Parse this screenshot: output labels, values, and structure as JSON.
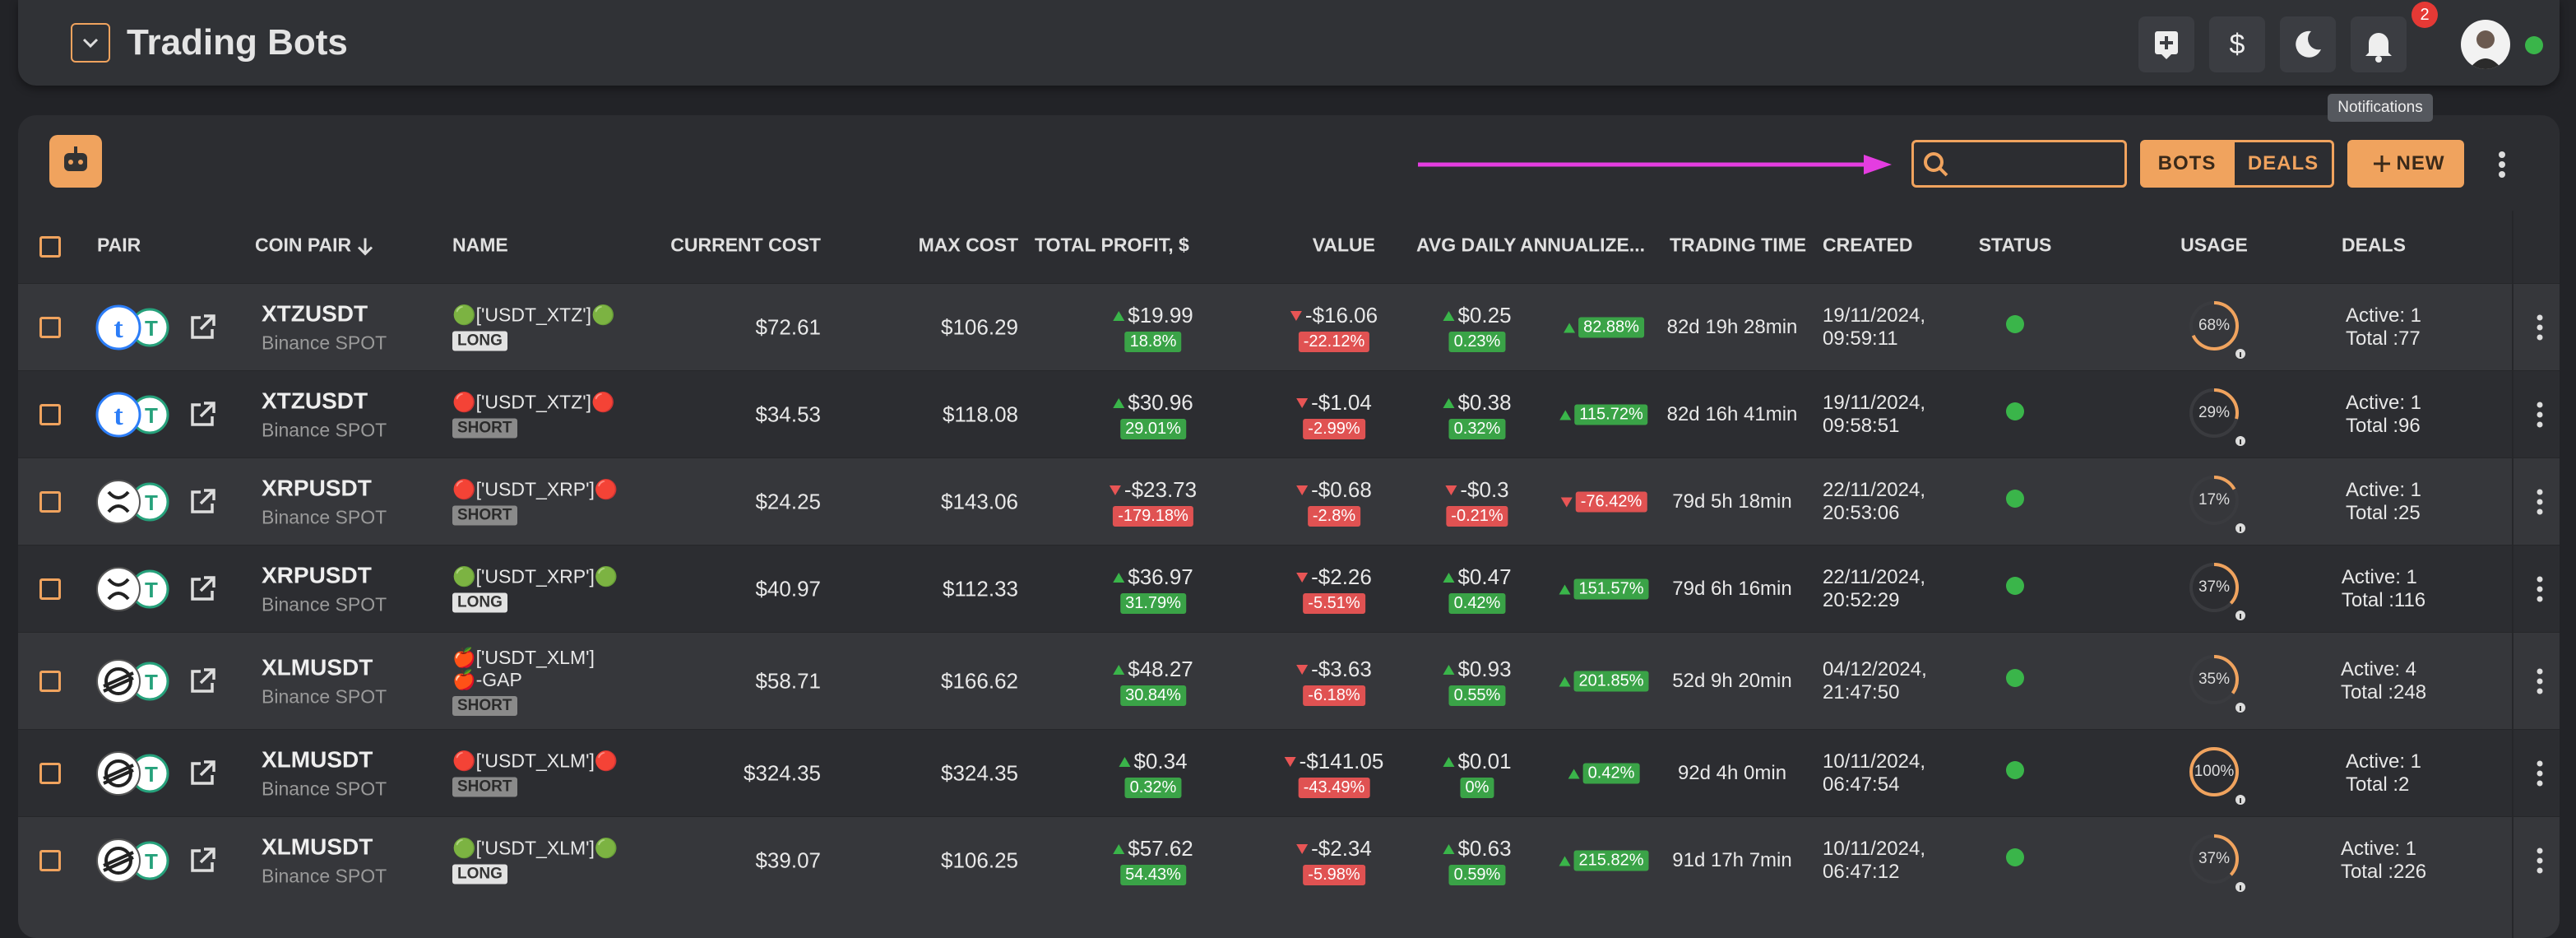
{
  "header": {
    "title": "Trading Bots",
    "notification_count": "2",
    "tooltip": "Notifications"
  },
  "toolbar": {
    "bots": "BOTS",
    "deals": "DEALS",
    "new": "NEW"
  },
  "table": {
    "columns": [
      "PAIR",
      "COIN PAIR",
      "NAME",
      "CURRENT COST",
      "MAX COST",
      "TOTAL PROFIT, $",
      "VALUE",
      "AVG DAILY",
      "ANNUALIZE...",
      "TRADING TIME",
      "CREATED",
      "STATUS",
      "USAGE",
      "DEALS"
    ],
    "rows": [
      {
        "pair": "XTZUSDT",
        "exchange": "Binance SPOT",
        "name": "🟢['USDT_XTZ']🟢",
        "tag": "LONG",
        "current_cost": "$72.61",
        "max_cost": "$106.29",
        "profit": "$19.99",
        "profit_pct": "18.8%",
        "value": "-$16.06",
        "value_pct": "-22.12%",
        "avg_daily": "$0.25",
        "avg_pct": "0.23%",
        "annualized": "82.88%",
        "trading_time": "82d 19h 28min",
        "created_date": "19/11/2024,",
        "created_time": "09:59:11",
        "usage": "68%",
        "active": "Active: 1",
        "total": "Total :77"
      },
      {
        "pair": "XTZUSDT",
        "exchange": "Binance SPOT",
        "name": "🔴['USDT_XTZ']🔴",
        "tag": "SHORT",
        "current_cost": "$34.53",
        "max_cost": "$118.08",
        "profit": "$30.96",
        "profit_pct": "29.01%",
        "value": "-$1.04",
        "value_pct": "-2.99%",
        "avg_daily": "$0.38",
        "avg_pct": "0.32%",
        "annualized": "115.72%",
        "trading_time": "82d 16h 41min",
        "created_date": "19/11/2024,",
        "created_time": "09:58:51",
        "usage": "29%",
        "active": "Active: 1",
        "total": "Total :96"
      },
      {
        "pair": "XRPUSDT",
        "exchange": "Binance SPOT",
        "name": "🔴['USDT_XRP']🔴",
        "tag": "SHORT",
        "current_cost": "$24.25",
        "max_cost": "$143.06",
        "profit": "-$23.73",
        "profit_pct": "-179.18%",
        "value": "-$0.68",
        "value_pct": "-2.8%",
        "avg_daily": "-$0.3",
        "avg_pct": "-0.21%",
        "annualized": "-76.42%",
        "trading_time": "79d 5h 18min",
        "created_date": "22/11/2024,",
        "created_time": "20:53:06",
        "usage": "17%",
        "active": "Active: 1",
        "total": "Total :25"
      },
      {
        "pair": "XRPUSDT",
        "exchange": "Binance SPOT",
        "name": "🟢['USDT_XRP']🟢",
        "tag": "LONG",
        "current_cost": "$40.97",
        "max_cost": "$112.33",
        "profit": "$36.97",
        "profit_pct": "31.79%",
        "value": "-$2.26",
        "value_pct": "-5.51%",
        "avg_daily": "$0.47",
        "avg_pct": "0.42%",
        "annualized": "151.57%",
        "trading_time": "79d 6h 16min",
        "created_date": "22/11/2024,",
        "created_time": "20:52:29",
        "usage": "37%",
        "active": "Active: 1",
        "total": "Total :116"
      },
      {
        "pair": "XLMUSDT",
        "exchange": "Binance SPOT",
        "name": "🍎['USDT_XLM']🍎-GAP",
        "tag": "SHORT",
        "current_cost": "$58.71",
        "max_cost": "$166.62",
        "profit": "$48.27",
        "profit_pct": "30.84%",
        "value": "-$3.63",
        "value_pct": "-6.18%",
        "avg_daily": "$0.93",
        "avg_pct": "0.55%",
        "annualized": "201.85%",
        "trading_time": "52d 9h 20min",
        "created_date": "04/12/2024,",
        "created_time": "21:47:50",
        "usage": "35%",
        "active": "Active: 4",
        "total": "Total :248"
      },
      {
        "pair": "XLMUSDT",
        "exchange": "Binance SPOT",
        "name": "🔴['USDT_XLM']🔴",
        "tag": "SHORT",
        "current_cost": "$324.35",
        "max_cost": "$324.35",
        "profit": "$0.34",
        "profit_pct": "0.32%",
        "value": "-$141.05",
        "value_pct": "-43.49%",
        "avg_daily": "$0.01",
        "avg_pct": "0%",
        "annualized": "0.42%",
        "trading_time": "92d 4h 0min",
        "created_date": "10/11/2024,",
        "created_time": "06:47:54",
        "usage": "100%",
        "active": "Active: 1",
        "total": "Total :2"
      },
      {
        "pair": "XLMUSDT",
        "exchange": "Binance SPOT",
        "name": "🟢['USDT_XLM']🟢",
        "tag": "LONG",
        "current_cost": "$39.07",
        "max_cost": "$106.25",
        "profit": "$57.62",
        "profit_pct": "54.43%",
        "value": "-$2.34",
        "value_pct": "-5.98%",
        "avg_daily": "$0.63",
        "avg_pct": "0.59%",
        "annualized": "215.82%",
        "trading_time": "91d 17h 7min",
        "created_date": "10/11/2024,",
        "created_time": "06:47:12",
        "usage": "37%",
        "active": "Active: 1",
        "total": "Total :226"
      }
    ]
  }
}
